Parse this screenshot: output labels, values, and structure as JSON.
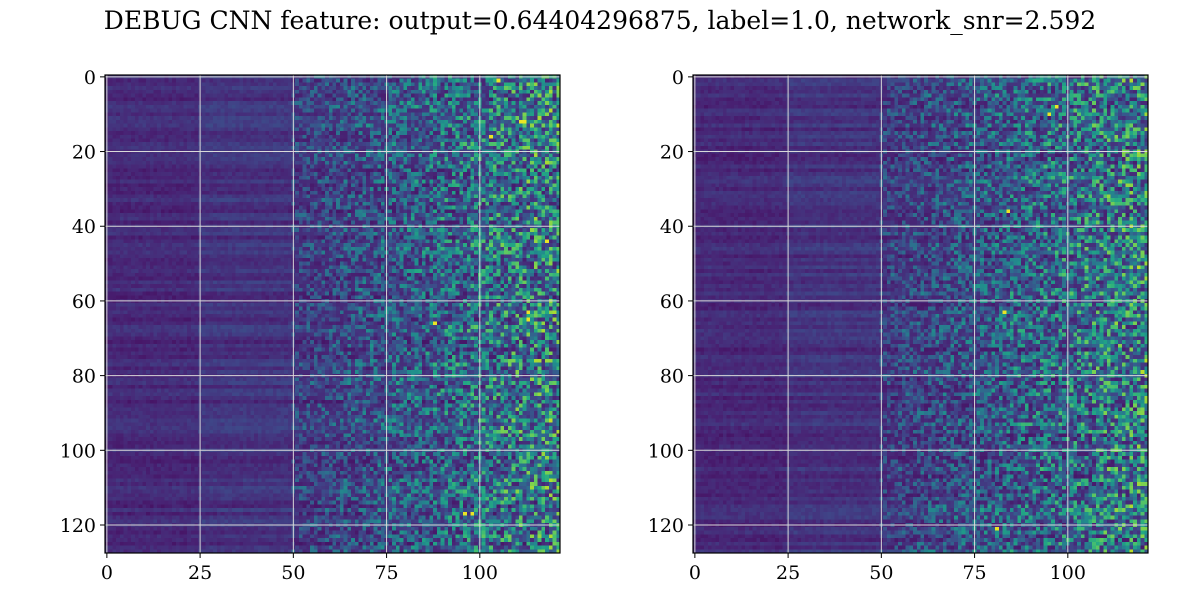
{
  "title": "DEBUG CNN feature: output=0.64404296875, label=1.0, network_snr=2.592",
  "colors": {
    "colormap": "viridis",
    "grid": "#d9d9d9",
    "spine": "#000000"
  },
  "chart_data": [
    {
      "type": "heatmap",
      "title": "",
      "xlabel": "",
      "ylabel": "",
      "xlim": [
        -0.5,
        121.5
      ],
      "ylim": [
        127.5,
        -0.5
      ],
      "columns": 122,
      "rows": 128,
      "x_ticks": [
        0,
        25,
        50,
        75,
        100
      ],
      "y_ticks": [
        0,
        20,
        40,
        60,
        80,
        100,
        120
      ],
      "grid": true,
      "colormap": "viridis",
      "description_of_values": "low, horizontally banded values for columns 0-50; increasingly noisy/speckled higher values for columns 50-121",
      "bright_cells": [
        {
          "x": 111,
          "y": 12
        },
        {
          "x": 112,
          "y": 12
        },
        {
          "x": 113,
          "y": 65
        },
        {
          "x": 113,
          "y": 63
        },
        {
          "x": 98,
          "y": 117
        },
        {
          "x": 96,
          "y": 117
        },
        {
          "x": 118,
          "y": 44
        },
        {
          "x": 105,
          "y": 1
        },
        {
          "x": 103,
          "y": 16
        },
        {
          "x": 88,
          "y": 66
        }
      ]
    },
    {
      "type": "heatmap",
      "title": "",
      "xlabel": "",
      "ylabel": "",
      "xlim": [
        -0.5,
        121.5
      ],
      "ylim": [
        127.5,
        -0.5
      ],
      "columns": 122,
      "rows": 128,
      "x_ticks": [
        0,
        25,
        50,
        75,
        100
      ],
      "y_ticks": [
        0,
        20,
        40,
        60,
        80,
        100,
        120
      ],
      "grid": true,
      "colormap": "viridis",
      "description_of_values": "low, horizontally banded values for columns 0-50; increasingly noisy/speckled higher values for columns 50-121",
      "bright_cells": [
        {
          "x": 95,
          "y": 10
        },
        {
          "x": 83,
          "y": 63
        },
        {
          "x": 97,
          "y": 8
        },
        {
          "x": 84,
          "y": 36
        },
        {
          "x": 81,
          "y": 121
        }
      ]
    }
  ]
}
